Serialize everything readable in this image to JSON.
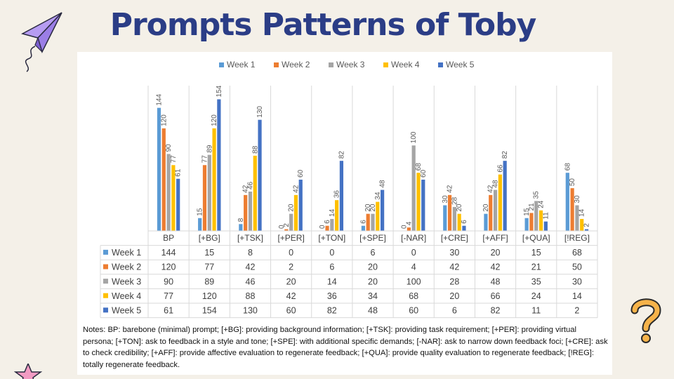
{
  "title": "Prompts Patterns of Toby",
  "chart_data": {
    "type": "bar",
    "categories": [
      "BP",
      "[+BG]",
      "[+TSK]",
      "[+PER]",
      "[+TON]",
      "[+SPE]",
      "[-NAR]",
      "[+CRE]",
      "[+AFF]",
      "[+QUA]",
      "[!REG]"
    ],
    "series": [
      {
        "name": "Week 1",
        "color": "#5b9bd5",
        "values": [
          144,
          15,
          8,
          0,
          0,
          6,
          0,
          30,
          20,
          15,
          68
        ]
      },
      {
        "name": "Week 2",
        "color": "#ed7d31",
        "values": [
          120,
          77,
          42,
          2,
          6,
          20,
          4,
          42,
          42,
          21,
          50
        ]
      },
      {
        "name": "Week 3",
        "color": "#a5a5a5",
        "values": [
          90,
          89,
          46,
          20,
          14,
          20,
          100,
          28,
          48,
          35,
          30
        ]
      },
      {
        "name": "Week 4",
        "color": "#ffc000",
        "values": [
          77,
          120,
          88,
          42,
          36,
          34,
          68,
          20,
          66,
          24,
          14
        ]
      },
      {
        "name": "Week 5",
        "color": "#4472c4",
        "values": [
          61,
          154,
          130,
          60,
          82,
          48,
          60,
          6,
          82,
          11,
          2
        ]
      }
    ],
    "ylim": [
      0,
      170
    ],
    "legend": "top",
    "data_table": true
  },
  "notes": "Notes: BP: barebone (minimal) prompt; [+BG]: providing background information; [+TSK]: providing task requirement; [+PER]: providing virtual persona; [+TON]: ask to feedback in a style and tone; [+SPE]: with additional specific demands; [-NAR]: ask to narrow down feedback foci; [+CRE]: ask to check credibility; [+AFF]: provide affective evaluation to regenerate feedback; [+QUA]: provide quality evaluation to regenerate feedback; [!REG]: totally regenerate feedback."
}
